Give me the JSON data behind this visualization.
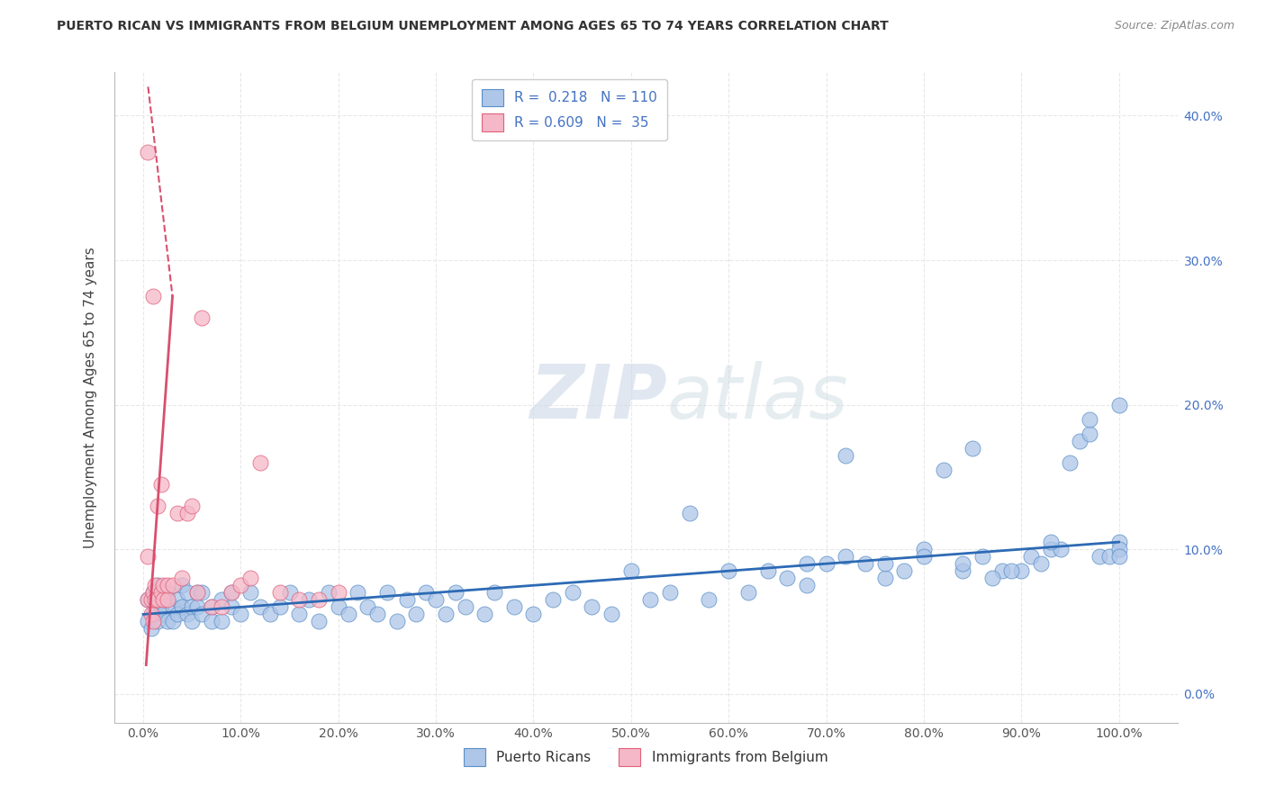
{
  "title": "PUERTO RICAN VS IMMIGRANTS FROM BELGIUM UNEMPLOYMENT AMONG AGES 65 TO 74 YEARS CORRELATION CHART",
  "source": "Source: ZipAtlas.com",
  "ylabel": "Unemployment Among Ages 65 to 74 years",
  "xlabel_ticks": [
    "0.0%",
    "10.0%",
    "20.0%",
    "30.0%",
    "40.0%",
    "50.0%",
    "60.0%",
    "70.0%",
    "80.0%",
    "90.0%",
    "100.0%"
  ],
  "xlabel_vals": [
    0,
    10,
    20,
    30,
    40,
    50,
    60,
    70,
    80,
    90,
    100
  ],
  "ylim": [
    -2,
    43
  ],
  "xlim": [
    -3,
    106
  ],
  "yticks": [
    0,
    10,
    20,
    30,
    40
  ],
  "ytick_labels": [
    "0.0%",
    "10.0%",
    "20.0%",
    "30.0%",
    "40.0%"
  ],
  "blue_color": "#aec6e8",
  "blue_edge": "#5b8fc9",
  "pink_color": "#f5b8c8",
  "pink_edge": "#e0607a",
  "blue_line_color": "#2d6ab5",
  "pink_line_color": "#d94f6e",
  "watermark_color": "#d0dce8",
  "legend_r_blue": "0.218",
  "legend_n_blue": "110",
  "legend_r_pink": "0.609",
  "legend_n_pink": "35",
  "blue_scatter_x": [
    0.5,
    0.5,
    0.8,
    1.0,
    1.0,
    1.2,
    1.5,
    1.5,
    1.8,
    2.0,
    2.0,
    2.2,
    2.5,
    2.5,
    3.0,
    3.0,
    3.5,
    3.5,
    4.0,
    4.0,
    4.5,
    4.5,
    5.0,
    5.0,
    5.5,
    5.5,
    6.0,
    6.0,
    7.0,
    7.0,
    8.0,
    8.0,
    9.0,
    9.0,
    10.0,
    11.0,
    12.0,
    13.0,
    14.0,
    15.0,
    16.0,
    17.0,
    18.0,
    19.0,
    20.0,
    21.0,
    22.0,
    23.0,
    24.0,
    25.0,
    26.0,
    27.0,
    28.0,
    29.0,
    30.0,
    31.0,
    32.0,
    33.0,
    35.0,
    36.0,
    38.0,
    40.0,
    42.0,
    44.0,
    46.0,
    48.0,
    50.0,
    52.0,
    54.0,
    56.0,
    58.0,
    60.0,
    62.0,
    64.0,
    66.0,
    68.0,
    70.0,
    72.0,
    74.0,
    76.0,
    78.0,
    80.0,
    82.0,
    84.0,
    86.0,
    88.0,
    90.0,
    91.0,
    92.0,
    93.0,
    94.0,
    95.0,
    96.0,
    97.0,
    98.0,
    99.0,
    100.0,
    100.0,
    100.0,
    100.0,
    85.0,
    87.0,
    89.0,
    93.0,
    97.0,
    68.0,
    72.0,
    76.0,
    80.0,
    84.0
  ],
  "blue_scatter_y": [
    5.0,
    6.5,
    4.5,
    5.5,
    7.0,
    6.0,
    5.0,
    7.5,
    6.0,
    5.5,
    7.0,
    6.5,
    5.0,
    7.0,
    6.0,
    5.0,
    6.5,
    5.5,
    6.0,
    7.5,
    5.5,
    7.0,
    6.0,
    5.0,
    7.0,
    6.0,
    5.5,
    7.0,
    6.0,
    5.0,
    6.5,
    5.0,
    7.0,
    6.0,
    5.5,
    7.0,
    6.0,
    5.5,
    6.0,
    7.0,
    5.5,
    6.5,
    5.0,
    7.0,
    6.0,
    5.5,
    7.0,
    6.0,
    5.5,
    7.0,
    5.0,
    6.5,
    5.5,
    7.0,
    6.5,
    5.5,
    7.0,
    6.0,
    5.5,
    7.0,
    6.0,
    5.5,
    6.5,
    7.0,
    6.0,
    5.5,
    8.5,
    6.5,
    7.0,
    12.5,
    6.5,
    8.5,
    7.0,
    8.5,
    8.0,
    7.5,
    9.0,
    9.5,
    9.0,
    8.0,
    8.5,
    10.0,
    15.5,
    8.5,
    9.5,
    8.5,
    8.5,
    9.5,
    9.0,
    10.0,
    10.0,
    16.0,
    17.5,
    18.0,
    9.5,
    9.5,
    10.5,
    20.0,
    10.0,
    9.5,
    17.0,
    8.0,
    8.5,
    10.5,
    19.0,
    9.0,
    16.5,
    9.0,
    9.5,
    9.0
  ],
  "pink_scatter_x": [
    0.5,
    0.5,
    0.5,
    0.8,
    0.8,
    1.0,
    1.0,
    1.0,
    1.2,
    1.2,
    1.5,
    1.5,
    1.8,
    1.8,
    2.0,
    2.0,
    2.5,
    2.5,
    3.0,
    3.5,
    4.0,
    4.5,
    5.0,
    5.5,
    6.0,
    7.0,
    8.0,
    9.0,
    10.0,
    11.0,
    12.0,
    14.0,
    16.0,
    18.0,
    20.0
  ],
  "pink_scatter_y": [
    37.5,
    9.5,
    6.5,
    5.5,
    6.5,
    5.0,
    7.0,
    27.5,
    6.5,
    7.5,
    13.0,
    6.5,
    14.5,
    7.0,
    6.5,
    7.5,
    6.5,
    7.5,
    7.5,
    12.5,
    8.0,
    12.5,
    13.0,
    7.0,
    26.0,
    6.0,
    6.0,
    7.0,
    7.5,
    8.0,
    16.0,
    7.0,
    6.5,
    6.5,
    7.0
  ],
  "blue_reg_x0": 0,
  "blue_reg_x1": 100,
  "blue_reg_y0": 5.5,
  "blue_reg_y1": 10.5,
  "pink_solid_x0": 0.3,
  "pink_solid_x1": 3.0,
  "pink_solid_y0": 2.0,
  "pink_solid_y1": 27.5,
  "pink_dash_x0": 0.5,
  "pink_dash_x1": 3.0,
  "pink_dash_y0": 42.0,
  "pink_dash_y1": 27.5,
  "grid_color": "#e8e8e8",
  "background_color": "#ffffff"
}
